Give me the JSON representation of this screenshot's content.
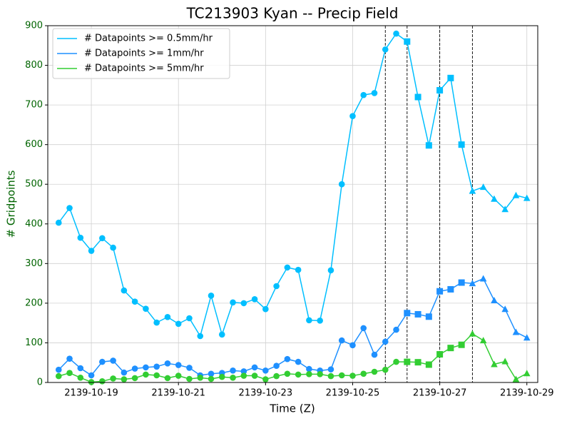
{
  "chart_data": {
    "type": "line",
    "title": "TC213903 Kyan -- Precip Field",
    "xlabel": "Time (Z)",
    "ylabel": "# Gridpoints",
    "x": [
      "2139-10-18 06:00",
      "2139-10-18 12:00",
      "2139-10-18 18:00",
      "2139-10-19 00:00",
      "2139-10-19 06:00",
      "2139-10-19 12:00",
      "2139-10-19 18:00",
      "2139-10-20 00:00",
      "2139-10-20 06:00",
      "2139-10-20 12:00",
      "2139-10-20 18:00",
      "2139-10-21 00:00",
      "2139-10-21 06:00",
      "2139-10-21 12:00",
      "2139-10-21 18:00",
      "2139-10-22 00:00",
      "2139-10-22 06:00",
      "2139-10-22 12:00",
      "2139-10-22 18:00",
      "2139-10-23 00:00",
      "2139-10-23 06:00",
      "2139-10-23 12:00",
      "2139-10-23 18:00",
      "2139-10-24 00:00",
      "2139-10-24 06:00",
      "2139-10-24 12:00",
      "2139-10-24 18:00",
      "2139-10-25 00:00",
      "2139-10-25 06:00",
      "2139-10-25 12:00",
      "2139-10-25 18:00",
      "2139-10-26 00:00",
      "2139-10-26 06:00",
      "2139-10-26 12:00",
      "2139-10-26 18:00",
      "2139-10-27 00:00",
      "2139-10-27 06:00",
      "2139-10-27 12:00",
      "2139-10-27 18:00",
      "2139-10-28 00:00",
      "2139-10-28 06:00",
      "2139-10-28 12:00",
      "2139-10-28 18:00",
      "2139-10-29 00:00"
    ],
    "markers": [
      "circle",
      "circle",
      "circle",
      "circle",
      "circle",
      "circle",
      "circle",
      "circle",
      "circle",
      "circle",
      "circle",
      "circle",
      "circle",
      "circle",
      "circle",
      "circle",
      "circle",
      "circle",
      "circle",
      "circle",
      "circle",
      "circle",
      "circle",
      "circle",
      "circle",
      "circle",
      "circle",
      "circle",
      "circle",
      "circle",
      "circle",
      "circle",
      "square",
      "square",
      "square",
      "square",
      "square",
      "square",
      "triangle",
      "triangle",
      "triangle",
      "triangle",
      "triangle",
      "triangle"
    ],
    "series": [
      {
        "name": "# Datapoints >= 0.5mm/hr",
        "color": "#00bfff",
        "values": [
          403,
          440,
          365,
          332,
          364,
          340,
          232,
          204,
          186,
          151,
          165,
          148,
          162,
          117,
          219,
          121,
          202,
          200,
          210,
          185,
          243,
          290,
          284,
          157,
          156,
          283,
          500,
          672,
          725,
          730,
          840,
          880,
          860,
          720,
          598,
          737,
          768,
          600,
          483,
          493,
          463,
          437,
          472,
          465
        ]
      },
      {
        "name": "# Datapoints >= 1mm/hr",
        "color": "#1e90ff",
        "values": [
          32,
          60,
          36,
          18,
          52,
          55,
          25,
          35,
          38,
          40,
          48,
          44,
          37,
          18,
          22,
          24,
          30,
          28,
          38,
          30,
          42,
          59,
          52,
          34,
          30,
          33,
          106,
          94,
          137,
          70,
          103,
          133,
          175,
          172,
          166,
          230,
          235,
          252,
          250,
          262,
          207,
          185,
          127,
          113
        ]
      },
      {
        "name": "# Datapoints >= 5mm/hr",
        "color": "#32cd32",
        "values": [
          16,
          24,
          12,
          1,
          3,
          10,
          8,
          11,
          20,
          18,
          11,
          17,
          9,
          12,
          9,
          14,
          12,
          17,
          17,
          8,
          16,
          22,
          20,
          21,
          21,
          16,
          18,
          17,
          22,
          27,
          32,
          52,
          52,
          51,
          45,
          71,
          87,
          95,
          123,
          106,
          46,
          53,
          8,
          23
        ]
      }
    ],
    "vlines": [
      "2139-10-25 18:00",
      "2139-10-26 06:00",
      "2139-10-27 00:00",
      "2139-10-27 18:00"
    ],
    "xlim": [
      "2139-10-18 00:00",
      "2139-10-29 06:00"
    ],
    "xticks": [
      "2139-10-19",
      "2139-10-21",
      "2139-10-23",
      "2139-10-25",
      "2139-10-27",
      "2139-10-29"
    ],
    "ylim": [
      0,
      900
    ],
    "yticks": [
      0,
      100,
      200,
      300,
      400,
      500,
      600,
      700,
      800,
      900
    ],
    "ytick_color": "#006400",
    "grid": true,
    "legend": "upper left"
  }
}
